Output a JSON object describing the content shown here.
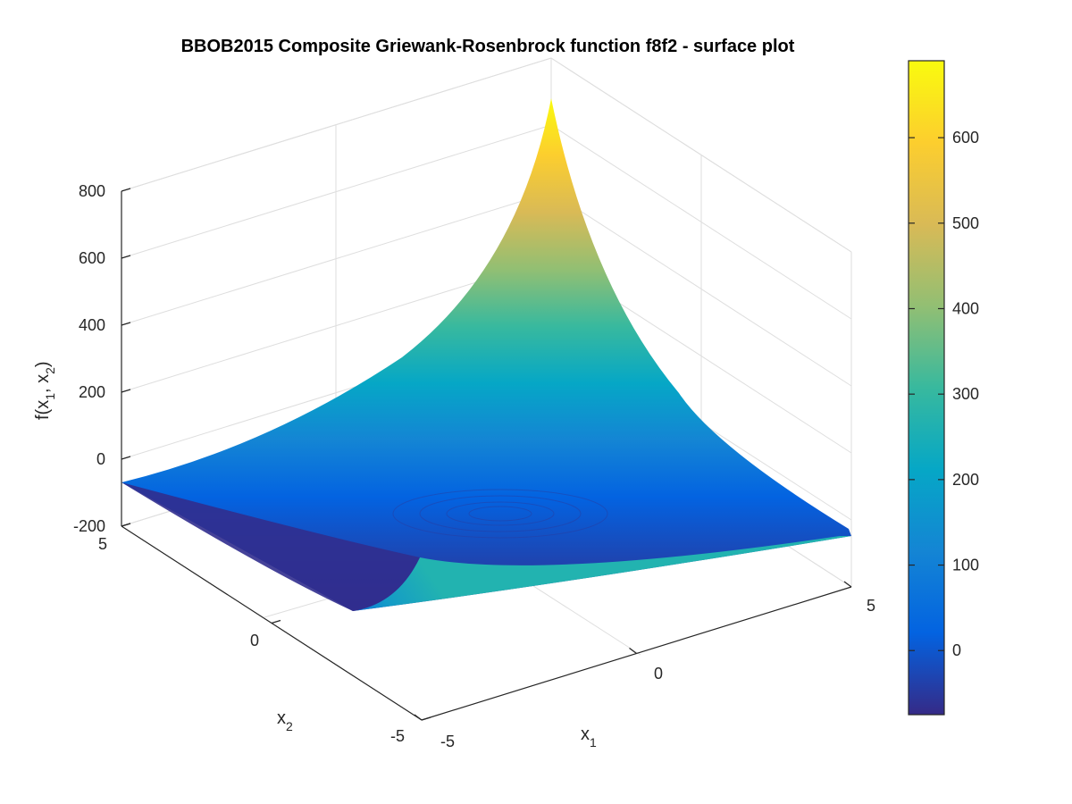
{
  "chart_data": {
    "type": "surface",
    "title": "BBOB2015 Composite Griewank-Rosenbrock function f8f2 - surface plot",
    "xlabel": {
      "base": "x",
      "sub": "1"
    },
    "ylabel": {
      "base": "x",
      "sub": "2"
    },
    "zlabel": {
      "prefix": "f(x",
      "sub1": "1",
      "middle": ", x",
      "sub2": "2",
      "suffix": ")"
    },
    "xlim": [
      -5,
      5
    ],
    "ylim": [
      -5,
      5
    ],
    "zlim": [
      -200,
      800
    ],
    "x_ticks": [
      "-5",
      "0",
      "5"
    ],
    "y_ticks": [
      "-5",
      "0",
      "5"
    ],
    "z_ticks": [
      "-200",
      "0",
      "200",
      "400",
      "600",
      "800"
    ],
    "grid": true,
    "colormap": "parula",
    "colorbar": {
      "ticks": [
        "0",
        "100",
        "200",
        "300",
        "400",
        "500",
        "600"
      ],
      "range": [
        -75,
        690
      ],
      "colors": [
        "#352a87",
        "#0363e1",
        "#1485d4",
        "#06a7c6",
        "#38b99e",
        "#92bf73",
        "#d9ba56",
        "#fcce2e",
        "#f9fb0e"
      ]
    },
    "surface_corners": [
      {
        "x1": -5,
        "x2": -5,
        "f": 100
      },
      {
        "x1": 5,
        "x2": -5,
        "f": 0
      },
      {
        "x1": -5,
        "x2": 5,
        "f": 0
      },
      {
        "x1": 5,
        "x2": 5,
        "f": 680
      }
    ]
  }
}
